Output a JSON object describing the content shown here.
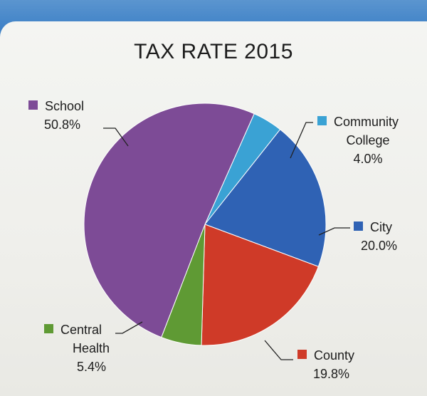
{
  "chart_data": {
    "type": "pie",
    "title": "TAX RATE 2015",
    "slices": [
      {
        "label": "School",
        "value": 50.8,
        "value_label": "50.8%",
        "color": "#7d4b96"
      },
      {
        "label": "Community College",
        "label_lines": [
          "Community",
          "College"
        ],
        "value": 4.0,
        "value_label": "4.0%",
        "color": "#3aa2d4"
      },
      {
        "label": "City",
        "value": 20.0,
        "value_label": "20.0%",
        "color": "#2f62b4"
      },
      {
        "label": "County",
        "value": 19.8,
        "value_label": "19.8%",
        "color": "#cf3a28"
      },
      {
        "label": "Central Health",
        "label_lines": [
          "Central",
          "Health"
        ],
        "value": 5.4,
        "value_label": "5.4%",
        "color": "#5f9a34"
      }
    ],
    "legend_placement": "around pie with leader lines"
  }
}
